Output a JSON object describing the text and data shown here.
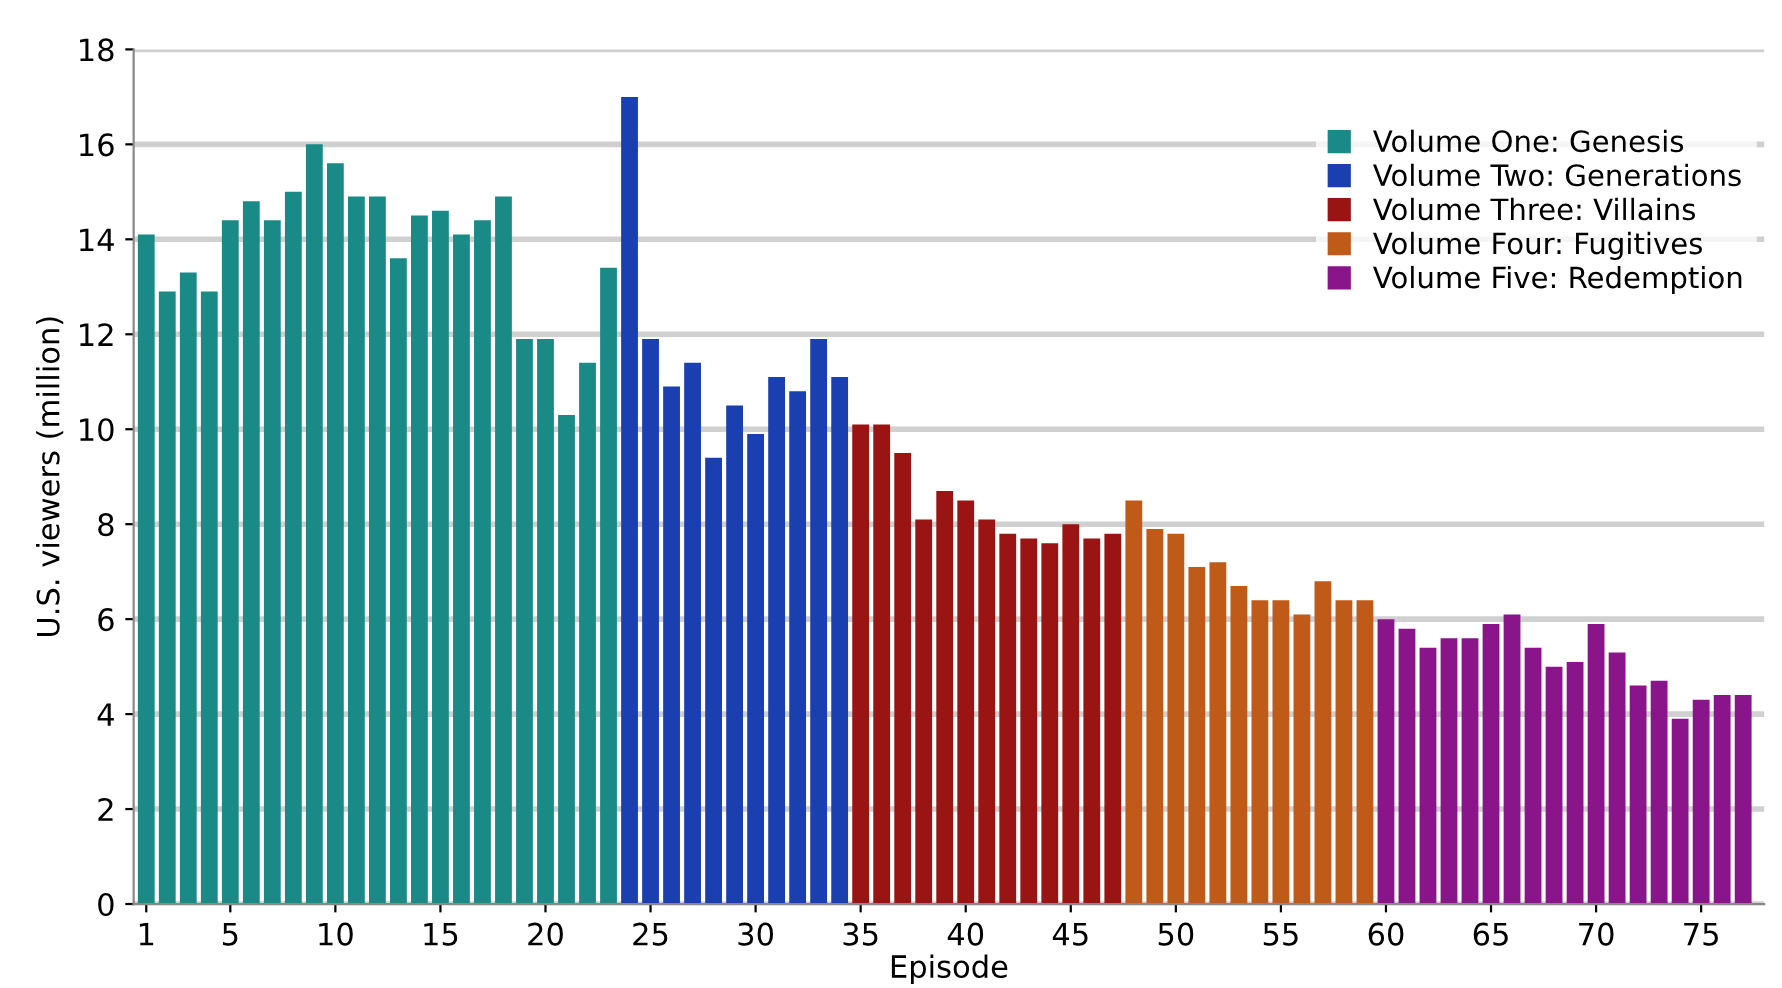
{
  "chart_data": {
    "type": "bar",
    "xlabel": "Episode",
    "ylabel": "U.S. viewers (million)",
    "xlim": [
      0.4,
      78
    ],
    "xticks": [
      1,
      5,
      10,
      15,
      20,
      25,
      30,
      35,
      40,
      45,
      50,
      55,
      60,
      65,
      70,
      75
    ],
    "ylim": [
      0,
      18
    ],
    "yticks": [
      0,
      2,
      4,
      6,
      8,
      10,
      12,
      14,
      16,
      18
    ],
    "grid": "y",
    "legend": "top right",
    "series": [
      {
        "name": "Volume One: Genesis",
        "color": "#1a8a87",
        "x": [
          1,
          2,
          3,
          4,
          5,
          6,
          7,
          8,
          9,
          10,
          11,
          12,
          13,
          14,
          15,
          16,
          17,
          18,
          19,
          20,
          21,
          22,
          23
        ],
        "values": [
          14.1,
          12.9,
          13.3,
          12.9,
          14.4,
          14.8,
          14.4,
          15.0,
          16.0,
          15.6,
          14.9,
          14.9,
          13.6,
          14.5,
          14.6,
          14.1,
          14.4,
          14.9,
          11.9,
          11.9,
          10.3,
          11.4,
          13.4
        ]
      },
      {
        "name": "Volume Two: Generations",
        "color": "#1a3fb0",
        "x": [
          24,
          25,
          26,
          27,
          28,
          29,
          30,
          31,
          32,
          33,
          34
        ],
        "values": [
          17.0,
          11.9,
          10.9,
          11.4,
          9.4,
          10.5,
          9.9,
          11.1,
          10.8,
          11.9,
          11.1
        ]
      },
      {
        "name": "Volume Three: Villains",
        "color": "#9b1414",
        "x": [
          35,
          36,
          37,
          38,
          39,
          40,
          41,
          42,
          43,
          44,
          45,
          46,
          47
        ],
        "values": [
          10.1,
          10.1,
          9.5,
          8.1,
          8.7,
          8.5,
          8.1,
          7.8,
          7.7,
          7.6,
          8.0,
          7.7,
          7.8
        ]
      },
      {
        "name": "Volume Four: Fugitives",
        "color": "#c05a18",
        "x": [
          48,
          49,
          50,
          51,
          52,
          53,
          54,
          55,
          56,
          57,
          58,
          59
        ],
        "values": [
          8.5,
          7.9,
          7.8,
          7.1,
          7.2,
          6.7,
          6.4,
          6.4,
          6.1,
          6.8,
          6.4,
          6.4
        ]
      },
      {
        "name": "Volume Five: Redemption",
        "color": "#8a148a",
        "x": [
          60,
          61,
          62,
          63,
          64,
          65,
          66,
          67,
          68,
          69,
          70,
          71,
          72,
          73,
          74,
          75,
          76,
          77
        ],
        "values": [
          6.0,
          5.8,
          5.4,
          5.6,
          5.6,
          5.9,
          6.1,
          5.4,
          5.0,
          5.1,
          5.9,
          5.3,
          4.6,
          4.7,
          3.9,
          4.3,
          4.4,
          4.4
        ]
      }
    ]
  }
}
